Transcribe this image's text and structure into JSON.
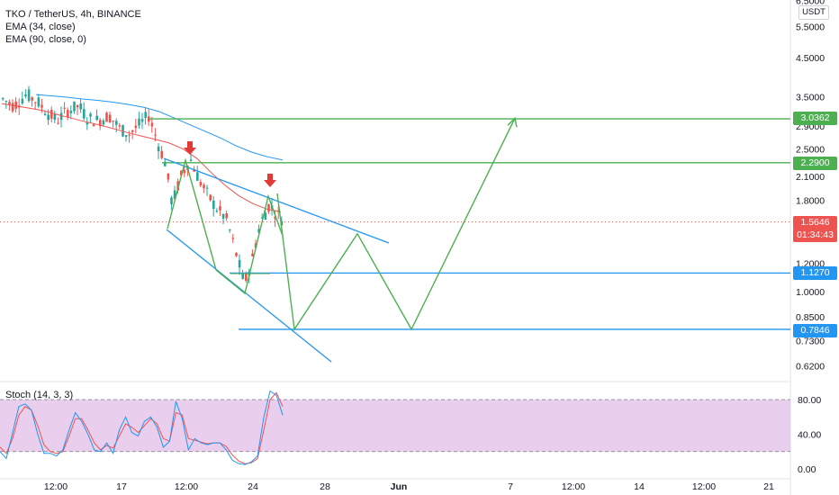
{
  "legend": {
    "title": "TKO / TetherUS, 4h, BINANCE",
    "ema1": "EMA (34, close)",
    "ema2": "EMA (90, close, 0)",
    "stoch": "Stoch (14, 3, 3)"
  },
  "currency_label": "USDT",
  "price_tags": {
    "target2": {
      "value": "3.0362",
      "color": "#4caf50"
    },
    "target1": {
      "value": "2.2900",
      "color": "#4caf50"
    },
    "current": {
      "value": "1.5646",
      "color": "#ef5350"
    },
    "countdown": "01:34:43",
    "support1": {
      "value": "1.1270",
      "color": "#2196f3"
    },
    "support2": {
      "value": "0.7846",
      "color": "#2196f3"
    }
  },
  "colors": {
    "up": "#26a69a",
    "down": "#ef5350",
    "ema34": "#ef5350",
    "ema90": "#2196f3",
    "projection": "#4caf50",
    "channel": "#2196f3",
    "stoch_k": "#2196f3",
    "stoch_d": "#ef5350",
    "stoch_band": "#e1bee7",
    "arrow": "#e53935"
  },
  "chart_data": {
    "type": "candlestick",
    "title": "TKO / TetherUS, 4h, BINANCE",
    "y_scale": "log",
    "ylim": [
      0.58,
      6.6
    ],
    "y_ticks": [
      "6.5000",
      "5.5000",
      "4.5000",
      "3.5000",
      "2.9000",
      "2.5000",
      "2.1000",
      "1.8000",
      "1.2000",
      "1.0000",
      "0.8500",
      "0.7300",
      "0.6200"
    ],
    "x_ticks": [
      "12:00",
      "17",
      "12:00",
      "24",
      "28",
      "Jun",
      "7",
      "12:00",
      "14",
      "12:00",
      "21"
    ],
    "bold_x_ticks": [
      "Jun"
    ],
    "series": [
      {
        "name": "EMA (34, close)",
        "values": [
          3.35,
          3.3,
          3.25,
          3.2,
          3.12,
          3.05,
          2.98,
          2.92,
          2.85,
          2.78,
          2.72,
          2.66,
          2.6,
          2.5,
          2.35,
          2.15,
          1.98,
          1.85,
          1.76,
          1.7,
          1.67
        ]
      },
      {
        "name": "EMA (90, close, 0)",
        "values": [
          3.55,
          3.52,
          3.49,
          3.45,
          3.42,
          3.38,
          3.33,
          3.27,
          3.18,
          3.05,
          2.92,
          2.8,
          2.68,
          2.55,
          2.45,
          2.38,
          2.33
        ]
      }
    ],
    "current_price": 1.5646,
    "horizontal_levels": [
      3.0362,
      2.29,
      1.127,
      0.7846
    ],
    "projection_path": [
      1.88,
      0.7846,
      1.45,
      0.7846,
      3.05
    ],
    "stochastic": {
      "name": "Stoch (14, 3, 3)",
      "ylim": [
        0,
        100
      ],
      "y_ticks": [
        "80.00",
        "40.00",
        "0.00"
      ],
      "band": [
        20,
        80
      ],
      "k": [
        20,
        12,
        42,
        72,
        75,
        68,
        40,
        18,
        18,
        15,
        22,
        45,
        65,
        55,
        40,
        22,
        20,
        30,
        18,
        45,
        60,
        42,
        38,
        55,
        60,
        48,
        25,
        32,
        78,
        58,
        22,
        35,
        30,
        28,
        30,
        30,
        22,
        10,
        6,
        5,
        8,
        15,
        60,
        90,
        85,
        62
      ],
      "d": [
        25,
        18,
        35,
        62,
        72,
        68,
        50,
        28,
        20,
        18,
        20,
        38,
        58,
        58,
        45,
        30,
        22,
        27,
        24,
        38,
        52,
        48,
        42,
        50,
        58,
        52,
        35,
        32,
        65,
        62,
        35,
        33,
        31,
        29,
        30,
        30,
        26,
        16,
        9,
        6,
        7,
        12,
        45,
        80,
        88,
        72
      ]
    }
  }
}
